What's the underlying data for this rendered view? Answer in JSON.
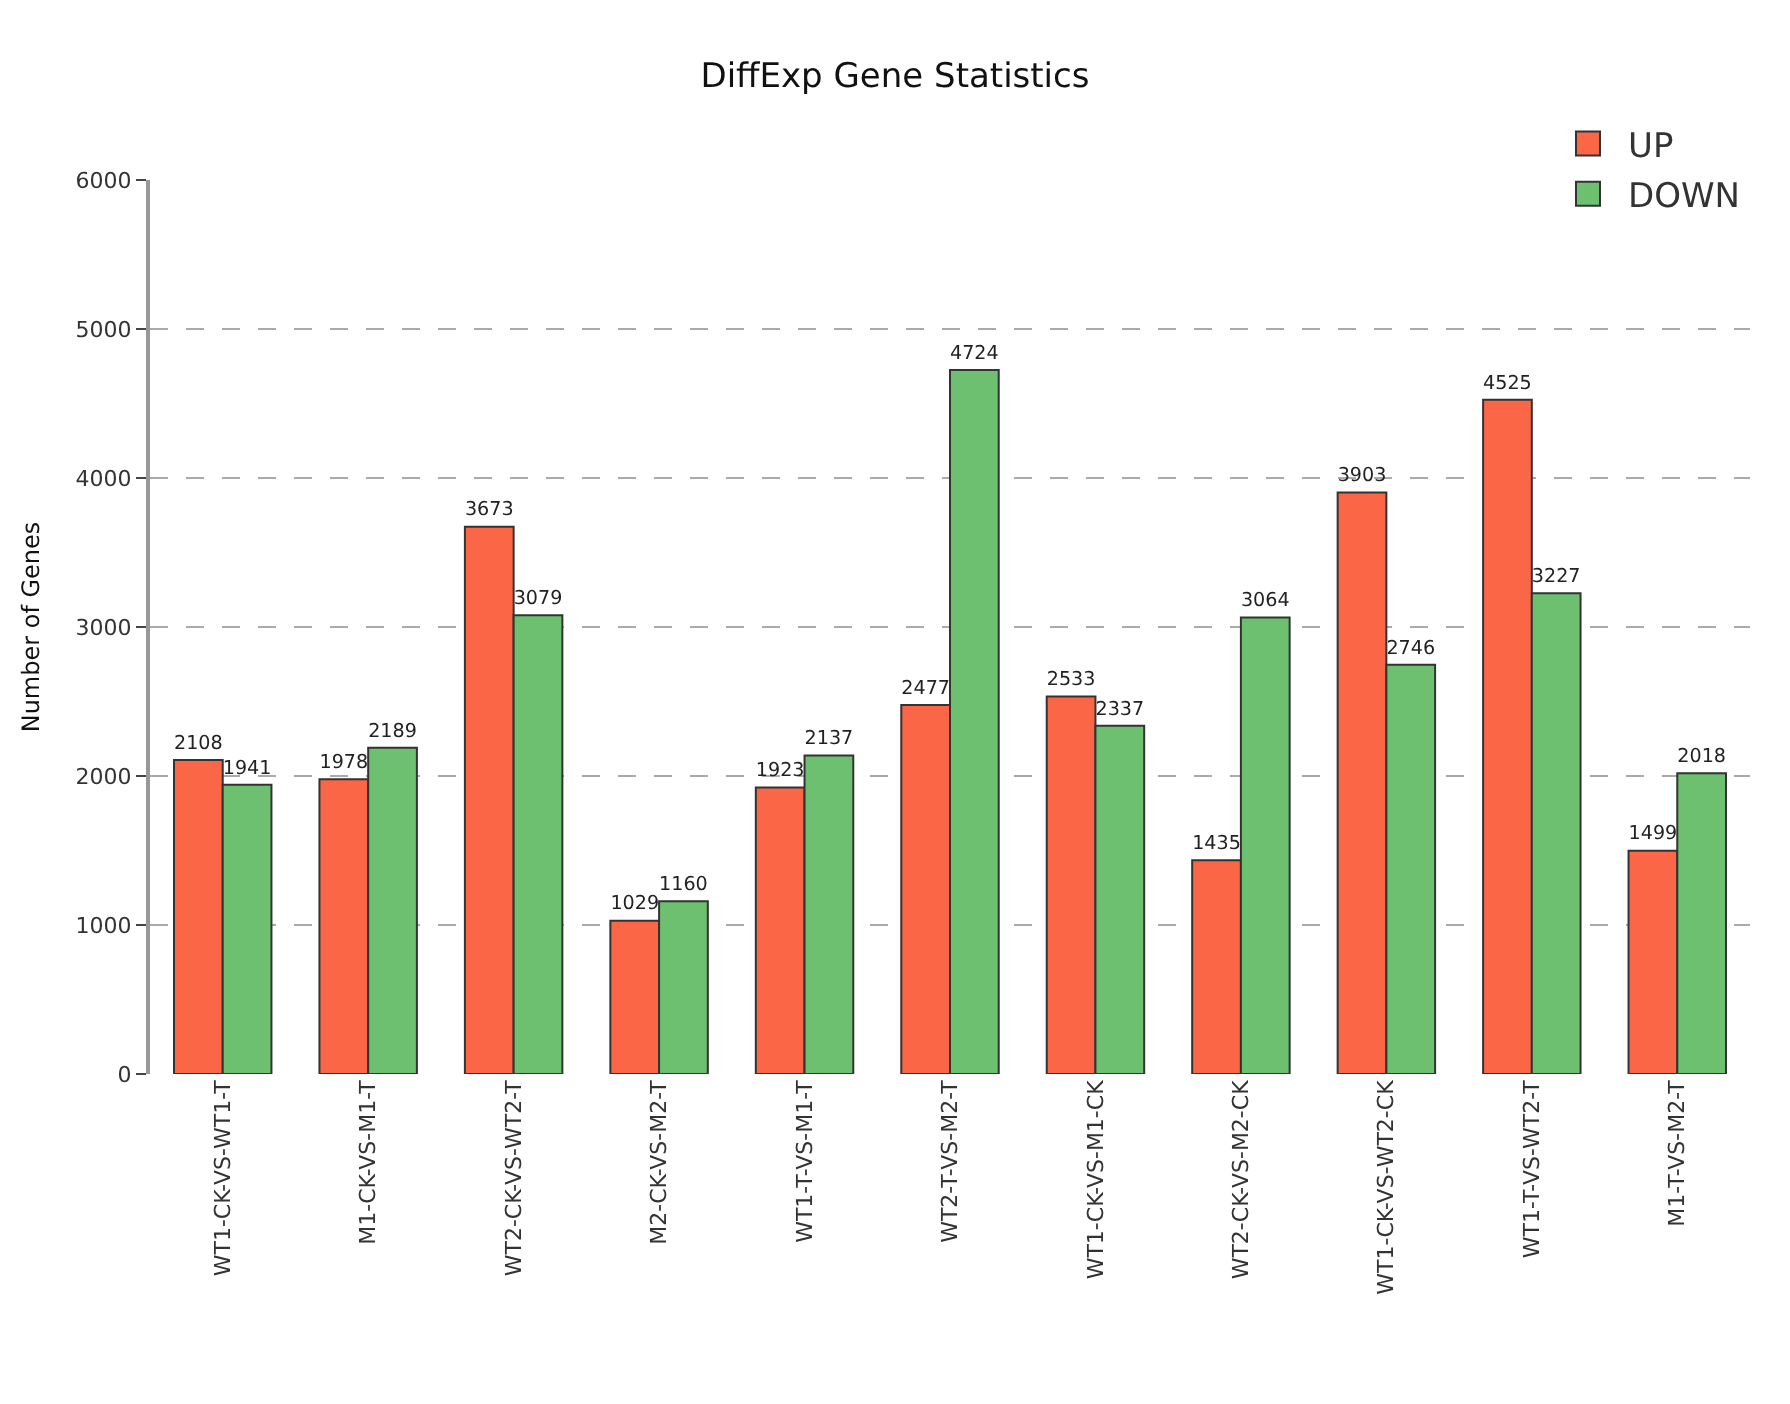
{
  "chart_data": {
    "type": "bar",
    "title": "DiffExp Gene Statistics",
    "ylabel": "Number of Genes",
    "categories": [
      "WT1-CK-VS-WT1-T",
      "M1-CK-VS-M1-T",
      "WT2-CK-VS-WT2-T",
      "M2-CK-VS-M2-T",
      "WT1-T-VS-M1-T",
      "WT2-T-VS-M2-T",
      "WT1-CK-VS-M1-CK",
      "WT2-CK-VS-M2-CK",
      "WT1-CK-VS-WT2-CK",
      "WT1-T-VS-WT2-T",
      "M1-T-VS-M2-T"
    ],
    "series": [
      {
        "name": "UP",
        "color": "#fa6646",
        "values": [
          2108,
          1978,
          3673,
          1029,
          1923,
          2477,
          2533,
          1435,
          3903,
          4525,
          1499
        ]
      },
      {
        "name": "DOWN",
        "color": "#6cc070",
        "values": [
          1941,
          2189,
          3079,
          1160,
          2137,
          4724,
          2337,
          3064,
          2746,
          3227,
          2018
        ]
      }
    ],
    "ylim": [
      0,
      6000
    ],
    "yticks": [
      0,
      1000,
      2000,
      3000,
      4000,
      5000,
      6000
    ],
    "grid": "y",
    "legend": "top right",
    "data_labels": true
  }
}
